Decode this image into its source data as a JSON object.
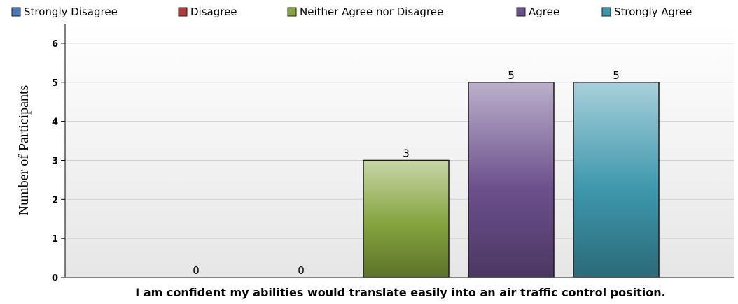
{
  "chart_data": {
    "type": "bar",
    "categories": [
      "Strongly Disagree",
      "Disagree",
      "Neither Agree nor Disagree",
      "Agree",
      "Strongly Agree"
    ],
    "values": [
      0,
      0,
      3,
      5,
      5
    ],
    "colors": [
      "#4a78b8",
      "#b23a3a",
      "#84a33d",
      "#6b4f8c",
      "#3d97ac"
    ],
    "xlabel": "I am confident my abilities would translate easily into an air traffic control position.",
    "ylabel": "Number of Participants",
    "ylim": [
      0,
      6.5
    ],
    "yticks": [
      "0",
      "1",
      "2",
      "3",
      "4",
      "5",
      "6"
    ],
    "grid": true,
    "legend_position": "top"
  }
}
